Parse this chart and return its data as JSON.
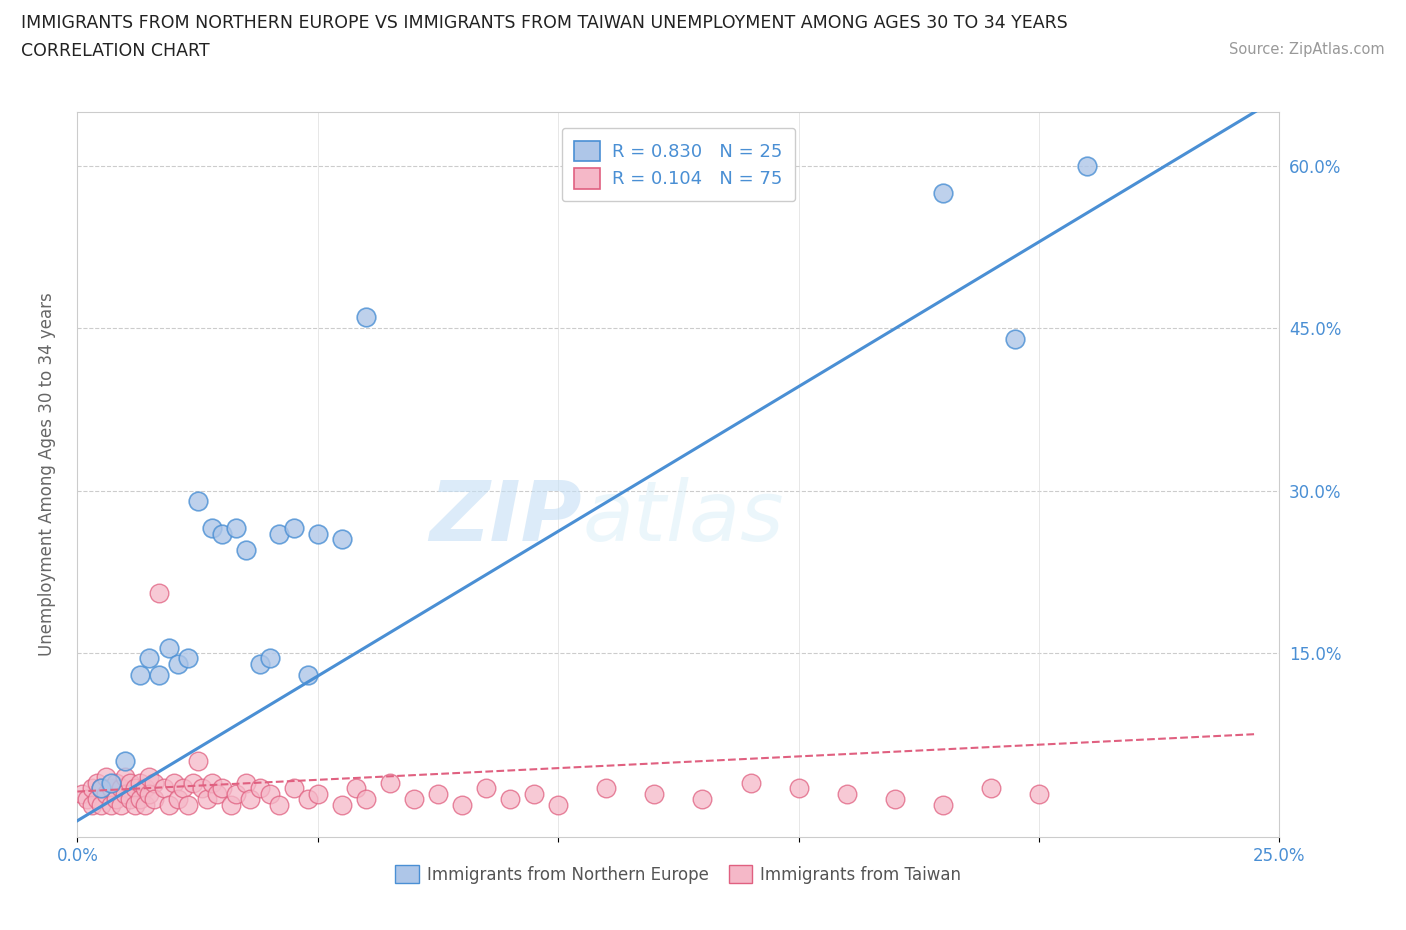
{
  "title_line1": "IMMIGRANTS FROM NORTHERN EUROPE VS IMMIGRANTS FROM TAIWAN UNEMPLOYMENT AMONG AGES 30 TO 34 YEARS",
  "title_line2": "CORRELATION CHART",
  "source": "Source: ZipAtlas.com",
  "ylabel": "Unemployment Among Ages 30 to 34 years",
  "xlim": [
    0.0,
    0.25
  ],
  "ylim": [
    -0.02,
    0.65
  ],
  "x_ticks": [
    0.0,
    0.05,
    0.1,
    0.15,
    0.2,
    0.25
  ],
  "y_ticks": [
    0.0,
    0.15,
    0.3,
    0.45,
    0.6
  ],
  "color_blue": "#aec6e8",
  "color_pink": "#f5b8c8",
  "line_blue": "#4a8fd4",
  "line_pink": "#e06080",
  "watermark_zip": "ZIP",
  "watermark_atlas": "atlas",
  "blue_scatter_x": [
    0.005,
    0.007,
    0.01,
    0.013,
    0.015,
    0.017,
    0.019,
    0.021,
    0.023,
    0.025,
    0.028,
    0.03,
    0.033,
    0.035,
    0.038,
    0.04,
    0.042,
    0.045,
    0.048,
    0.05,
    0.055,
    0.06,
    0.18,
    0.195,
    0.21
  ],
  "blue_scatter_y": [
    0.025,
    0.03,
    0.05,
    0.13,
    0.145,
    0.13,
    0.155,
    0.14,
    0.145,
    0.29,
    0.265,
    0.26,
    0.265,
    0.245,
    0.14,
    0.145,
    0.26,
    0.265,
    0.13,
    0.26,
    0.255,
    0.46,
    0.575,
    0.44,
    0.6
  ],
  "pink_scatter_x": [
    0.001,
    0.002,
    0.003,
    0.003,
    0.004,
    0.004,
    0.005,
    0.005,
    0.006,
    0.006,
    0.007,
    0.007,
    0.008,
    0.008,
    0.009,
    0.009,
    0.01,
    0.01,
    0.011,
    0.011,
    0.012,
    0.012,
    0.013,
    0.013,
    0.014,
    0.014,
    0.015,
    0.015,
    0.016,
    0.016,
    0.017,
    0.018,
    0.019,
    0.02,
    0.021,
    0.022,
    0.023,
    0.024,
    0.025,
    0.026,
    0.027,
    0.028,
    0.029,
    0.03,
    0.032,
    0.033,
    0.035,
    0.036,
    0.038,
    0.04,
    0.042,
    0.045,
    0.048,
    0.05,
    0.055,
    0.058,
    0.06,
    0.065,
    0.07,
    0.075,
    0.08,
    0.085,
    0.09,
    0.095,
    0.1,
    0.11,
    0.12,
    0.13,
    0.14,
    0.15,
    0.16,
    0.17,
    0.18,
    0.19,
    0.2
  ],
  "pink_scatter_y": [
    0.02,
    0.015,
    0.025,
    0.01,
    0.03,
    0.015,
    0.025,
    0.01,
    0.035,
    0.02,
    0.025,
    0.01,
    0.03,
    0.015,
    0.025,
    0.01,
    0.035,
    0.02,
    0.03,
    0.015,
    0.025,
    0.01,
    0.03,
    0.015,
    0.025,
    0.01,
    0.035,
    0.02,
    0.03,
    0.015,
    0.205,
    0.025,
    0.01,
    0.03,
    0.015,
    0.025,
    0.01,
    0.03,
    0.05,
    0.025,
    0.015,
    0.03,
    0.02,
    0.025,
    0.01,
    0.02,
    0.03,
    0.015,
    0.025,
    0.02,
    0.01,
    0.025,
    0.015,
    0.02,
    0.01,
    0.025,
    0.015,
    0.03,
    0.015,
    0.02,
    0.01,
    0.025,
    0.015,
    0.02,
    0.01,
    0.025,
    0.02,
    0.015,
    0.03,
    0.025,
    0.02,
    0.015,
    0.01,
    0.025,
    0.02
  ],
  "blue_line_x": [
    0.0,
    0.245
  ],
  "blue_line_y": [
    -0.005,
    0.65
  ],
  "pink_line_x": [
    0.0,
    0.245
  ],
  "pink_line_y": [
    0.022,
    0.075
  ]
}
